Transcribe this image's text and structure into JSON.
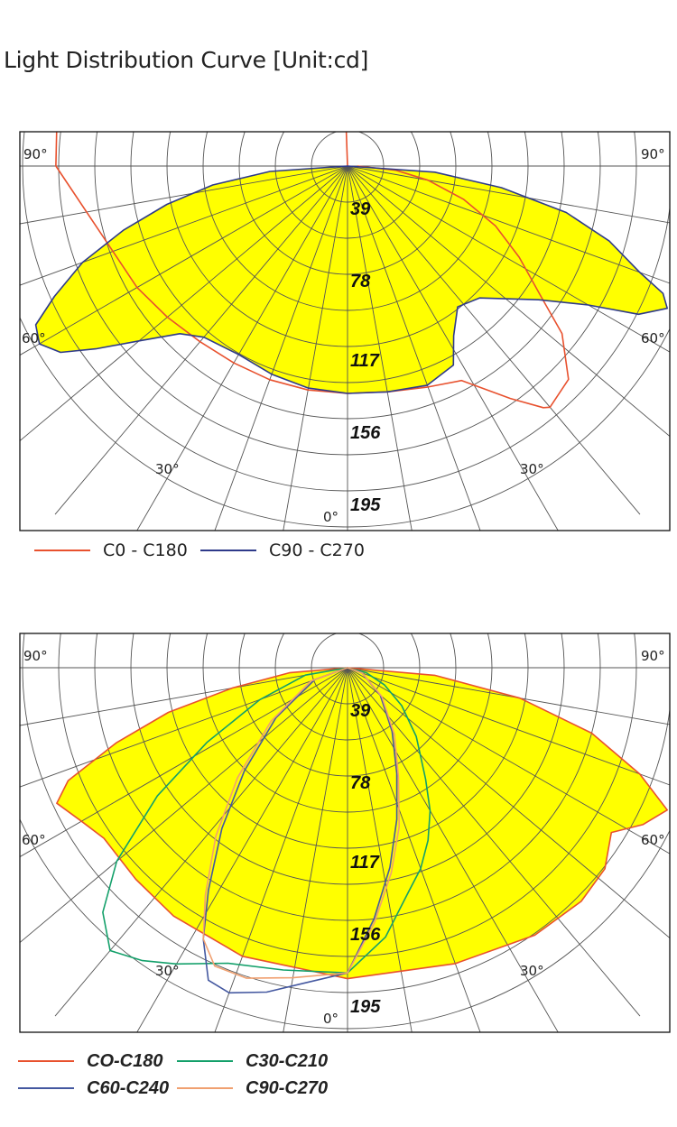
{
  "title": "Light Distribution Curve [Unit:cd]",
  "colors": {
    "fill": "#ffff00",
    "frame": "#111111",
    "grid": "#555555",
    "C0-C180": "#e8512e",
    "C90-C270-top": "#2e3a8a",
    "C30-C210": "#13a06a",
    "C60-C240": "#4458a0",
    "C90-C270-bottom": "#f0a070"
  },
  "chart_data": [
    {
      "type": "polar",
      "unit": "cd",
      "radial_ticks": [
        39,
        78,
        117,
        156,
        195
      ],
      "rmax": 195,
      "angle_labels": [
        "90°",
        "90°",
        "60°",
        "60°",
        "30°",
        "30°",
        "0°"
      ],
      "filled_series": "C90 - C270",
      "series": [
        {
          "name": "C0 - C180",
          "color": "#e8512e",
          "curve": [
            [
              -180,
              0
            ],
            [
              -178,
              22
            ],
            [
              -176,
              44
            ],
            [
              -172,
              64
            ],
            [
              -166,
              84
            ],
            [
              -160,
              102
            ],
            [
              -154,
              116
            ],
            [
              -150,
              120
            ],
            [
              -150,
              150
            ],
            [
              -145,
              165
            ],
            [
              -140,
              170
            ],
            [
              -120,
              171
            ],
            [
              -90,
              150
            ],
            [
              -60,
              125
            ],
            [
              -50,
              121
            ],
            [
              -40,
              118
            ],
            [
              -30,
              117
            ],
            [
              -20,
              117
            ],
            [
              -10,
              117
            ],
            [
              0,
              117
            ],
            [
              5,
              117
            ],
            [
              10,
              118
            ],
            [
              20,
              121
            ],
            [
              28,
              125
            ],
            [
              35,
              146
            ],
            [
              39,
              160
            ],
            [
              40,
              162
            ],
            [
              46,
              158
            ],
            [
              52,
              140
            ],
            [
              56,
              120
            ],
            [
              62,
              100
            ],
            [
              68,
              82
            ],
            [
              74,
              62
            ],
            [
              80,
              42
            ],
            [
              85,
              25
            ],
            [
              90,
              5
            ]
          ]
        },
        {
          "name": "C90 - C270",
          "color": "#2e3a8a",
          "curve": [
            [
              -90,
              0
            ],
            [
              -86,
              40
            ],
            [
              -82,
              70
            ],
            [
              -78,
              95
            ],
            [
              -74,
              120
            ],
            [
              -70,
              145
            ],
            [
              -66,
              165
            ],
            [
              -63,
              180
            ],
            [
              -60,
              183
            ],
            [
              -57,
              176
            ],
            [
              -54,
              160
            ],
            [
              -50,
              140
            ],
            [
              -45,
              122
            ],
            [
              -40,
              115
            ],
            [
              -30,
              112
            ],
            [
              -20,
              114
            ],
            [
              -10,
              116
            ],
            [
              0,
              117
            ],
            [
              10,
              118
            ],
            [
              20,
              120
            ],
            [
              28,
              116
            ],
            [
              32,
              103
            ],
            [
              38,
              92
            ],
            [
              45,
              96
            ],
            [
              55,
              120
            ],
            [
              60,
              143
            ],
            [
              63,
              168
            ],
            [
              66,
              180
            ],
            [
              68,
              175
            ],
            [
              70,
              160
            ],
            [
              74,
              140
            ],
            [
              78,
              115
            ],
            [
              82,
              80
            ],
            [
              86,
              45
            ],
            [
              90,
              0
            ]
          ]
        }
      ]
    },
    {
      "type": "polar",
      "unit": "cd",
      "radial_ticks": [
        39,
        78,
        117,
        156,
        195
      ],
      "rmax": 195,
      "angle_labels": [
        "90°",
        "90°",
        "60°",
        "60°",
        "30°",
        "30°",
        "0°"
      ],
      "filled_series": "CO-C180",
      "series": [
        {
          "name": "CO-C180",
          "color": "#e8512e",
          "curve": [
            [
              -90,
              0
            ],
            [
              -85,
              30
            ],
            [
              -80,
              60
            ],
            [
              -76,
              95
            ],
            [
              -72,
              125
            ],
            [
              -68,
              155
            ],
            [
              -65,
              165
            ],
            [
              -60,
              158
            ],
            [
              -55,
              153
            ],
            [
              -45,
              154
            ],
            [
              -35,
              156
            ],
            [
              -20,
              158
            ],
            [
              0,
              160
            ],
            [
              20,
              162
            ],
            [
              35,
              168
            ],
            [
              45,
              170
            ],
            [
              52,
              168
            ],
            [
              58,
              160
            ],
            [
              62,
              172
            ],
            [
              66,
              180
            ],
            [
              70,
              160
            ],
            [
              75,
              130
            ],
            [
              80,
              90
            ],
            [
              85,
              45
            ],
            [
              90,
              0
            ]
          ]
        },
        {
          "name": "C30-C210",
          "color": "#13a06a",
          "curve": [
            [
              -90,
              0
            ],
            [
              -80,
              22
            ],
            [
              -70,
              48
            ],
            [
              -62,
              82
            ],
            [
              -56,
              118
            ],
            [
              -50,
              155
            ],
            [
              -45,
              178
            ],
            [
              -40,
              190
            ],
            [
              -35,
              184
            ],
            [
              -30,
              176
            ],
            [
              -22,
              164
            ],
            [
              -12,
              159
            ],
            [
              0,
              157
            ],
            [
              8,
              140
            ],
            [
              15,
              120
            ],
            [
              20,
              110
            ],
            [
              25,
              98
            ],
            [
              30,
              85
            ],
            [
              35,
              70
            ],
            [
              45,
              50
            ],
            [
              55,
              34
            ],
            [
              65,
              21
            ],
            [
              75,
              10
            ],
            [
              90,
              0
            ]
          ]
        },
        {
          "name": "C60-C240",
          "color": "#4458a0",
          "curve": [
            [
              -90,
              0
            ],
            [
              -70,
              18
            ],
            [
              -55,
              45
            ],
            [
              -45,
              75
            ],
            [
              -38,
              105
            ],
            [
              -32,
              135
            ],
            [
              -28,
              158
            ],
            [
              -24,
              176
            ],
            [
              -20,
              178
            ],
            [
              -14,
              172
            ],
            [
              -8,
              164
            ],
            [
              0,
              157
            ],
            [
              6,
              130
            ],
            [
              12,
              105
            ],
            [
              18,
              82
            ],
            [
              25,
              60
            ],
            [
              35,
              40
            ],
            [
              50,
              22
            ],
            [
              70,
              8
            ],
            [
              90,
              0
            ]
          ]
        },
        {
          "name": "C90-C270",
          "color": "#f0a070",
          "curve": [
            [
              -90,
              0
            ],
            [
              -70,
              20
            ],
            [
              -55,
              48
            ],
            [
              -45,
              80
            ],
            [
              -38,
              110
            ],
            [
              -32,
              138
            ],
            [
              -28,
              158
            ],
            [
              -24,
              168
            ],
            [
              -18,
              168
            ],
            [
              -10,
              162
            ],
            [
              0,
              157
            ],
            [
              6,
              132
            ],
            [
              12,
              108
            ],
            [
              18,
              86
            ],
            [
              25,
              62
            ],
            [
              35,
              42
            ],
            [
              50,
              23
            ],
            [
              70,
              8
            ],
            [
              90,
              0
            ]
          ]
        }
      ]
    }
  ]
}
